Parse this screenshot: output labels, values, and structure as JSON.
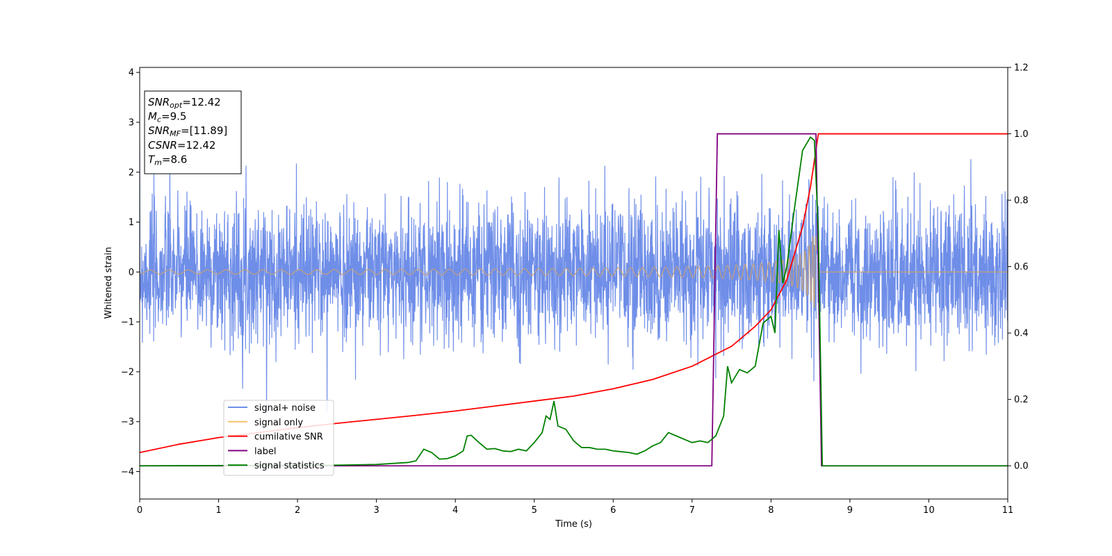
{
  "chart_data": {
    "type": "line",
    "xlabel": "Time (s)",
    "ylabel": "Whitened strain",
    "xlim": [
      0,
      11
    ],
    "ylim": [
      -4.55,
      4.1
    ],
    "y2lim": [
      -0.1,
      1.2
    ],
    "x_ticks": [
      "0",
      "1",
      "2",
      "3",
      "4",
      "5",
      "6",
      "7",
      "8",
      "9",
      "10",
      "11"
    ],
    "y_ticks": [
      "4",
      "3",
      "2",
      "1",
      "0",
      "−1",
      "−2",
      "−3",
      "−4"
    ],
    "y2_ticks": [
      "1.2",
      "1.0",
      "0.8",
      "0.6",
      "0.4",
      "0.2",
      "0.0"
    ],
    "info_box": [
      {
        "base": "SNR",
        "sub": "opt",
        "value": "=12.42"
      },
      {
        "base": "M",
        "sub": "c",
        "value": "=9.5"
      },
      {
        "base": "SNR",
        "sub": "MF",
        "value": "=[11.89]"
      },
      {
        "base": "CSNR",
        "sub": "",
        "value": "=12.42"
      },
      {
        "base": "T",
        "sub": "m",
        "value": "=8.6"
      }
    ],
    "legend": {
      "placement": "lower-left",
      "entries": [
        {
          "label": "signal+ noise",
          "color": "#6f8ee8"
        },
        {
          "label": "signal only",
          "color": "#f5c06a"
        },
        {
          "label": "cumilative SNR",
          "color": "#ff0000"
        },
        {
          "label": "label",
          "color": "#800080"
        },
        {
          "label": "signal statistics",
          "color": "#008000"
        }
      ]
    },
    "series": [
      {
        "name": "signal+ noise",
        "axis": "left",
        "color": "#6f8ee8",
        "description_kind": "noise",
        "std": 0.68,
        "x_range": [
          0,
          11
        ]
      },
      {
        "name": "signal only",
        "axis": "left",
        "color": "#c4a07a",
        "kind": "chirp",
        "t_start": 0,
        "t_merge": 8.6,
        "amplitude_start": 0.04,
        "amplitude_end": 0.72
      },
      {
        "name": "cumilative SNR",
        "axis": "right",
        "color": "#ff0000",
        "points": [
          [
            0,
            0.04
          ],
          [
            0.5,
            0.065
          ],
          [
            1,
            0.085
          ],
          [
            1.5,
            0.1
          ],
          [
            2,
            0.115
          ],
          [
            2.5,
            0.128
          ],
          [
            3,
            0.14
          ],
          [
            3.5,
            0.152
          ],
          [
            4,
            0.165
          ],
          [
            4.5,
            0.18
          ],
          [
            5,
            0.195
          ],
          [
            5.5,
            0.21
          ],
          [
            6,
            0.232
          ],
          [
            6.5,
            0.26
          ],
          [
            7,
            0.3
          ],
          [
            7.5,
            0.36
          ],
          [
            7.8,
            0.42
          ],
          [
            8,
            0.47
          ],
          [
            8.2,
            0.56
          ],
          [
            8.4,
            0.72
          ],
          [
            8.5,
            0.84
          ],
          [
            8.6,
            1.0
          ],
          [
            9,
            1.0
          ],
          [
            10,
            1.0
          ],
          [
            11,
            1.0
          ]
        ]
      },
      {
        "name": "label",
        "axis": "right",
        "color": "#800080",
        "points": [
          [
            0,
            0
          ],
          [
            7.25,
            0
          ],
          [
            7.32,
            1
          ],
          [
            8.57,
            1
          ],
          [
            8.64,
            0
          ],
          [
            11,
            0
          ]
        ]
      },
      {
        "name": "signal statistics",
        "axis": "right",
        "color": "#008000",
        "points": [
          [
            0,
            0
          ],
          [
            2.5,
            0.002
          ],
          [
            3,
            0.004
          ],
          [
            3.4,
            0.01
          ],
          [
            3.5,
            0.015
          ],
          [
            3.6,
            0.05
          ],
          [
            3.7,
            0.04
          ],
          [
            3.8,
            0.02
          ],
          [
            3.9,
            0.022
          ],
          [
            4.0,
            0.03
          ],
          [
            4.1,
            0.045
          ],
          [
            4.15,
            0.09
          ],
          [
            4.2,
            0.092
          ],
          [
            4.3,
            0.07
          ],
          [
            4.4,
            0.05
          ],
          [
            4.5,
            0.052
          ],
          [
            4.6,
            0.045
          ],
          [
            4.7,
            0.043
          ],
          [
            4.8,
            0.05
          ],
          [
            4.9,
            0.045
          ],
          [
            5.0,
            0.07
          ],
          [
            5.1,
            0.1
          ],
          [
            5.15,
            0.15
          ],
          [
            5.2,
            0.14
          ],
          [
            5.25,
            0.195
          ],
          [
            5.3,
            0.12
          ],
          [
            5.4,
            0.11
          ],
          [
            5.5,
            0.075
          ],
          [
            5.6,
            0.055
          ],
          [
            5.7,
            0.055
          ],
          [
            5.8,
            0.05
          ],
          [
            5.9,
            0.05
          ],
          [
            6.0,
            0.045
          ],
          [
            6.2,
            0.04
          ],
          [
            6.3,
            0.035
          ],
          [
            6.4,
            0.045
          ],
          [
            6.5,
            0.06
          ],
          [
            6.6,
            0.07
          ],
          [
            6.7,
            0.1
          ],
          [
            6.8,
            0.09
          ],
          [
            6.9,
            0.08
          ],
          [
            7.0,
            0.07
          ],
          [
            7.1,
            0.075
          ],
          [
            7.2,
            0.07
          ],
          [
            7.3,
            0.09
          ],
          [
            7.4,
            0.15
          ],
          [
            7.45,
            0.3
          ],
          [
            7.5,
            0.25
          ],
          [
            7.6,
            0.29
          ],
          [
            7.7,
            0.28
          ],
          [
            7.8,
            0.3
          ],
          [
            7.9,
            0.43
          ],
          [
            8.0,
            0.45
          ],
          [
            8.05,
            0.4
          ],
          [
            8.1,
            0.71
          ],
          [
            8.15,
            0.55
          ],
          [
            8.2,
            0.6
          ],
          [
            8.3,
            0.78
          ],
          [
            8.4,
            0.95
          ],
          [
            8.5,
            0.99
          ],
          [
            8.55,
            0.98
          ],
          [
            8.6,
            0.7
          ],
          [
            8.65,
            0.0
          ],
          [
            9,
            0
          ],
          [
            10,
            0
          ],
          [
            11,
            0
          ]
        ]
      }
    ]
  }
}
